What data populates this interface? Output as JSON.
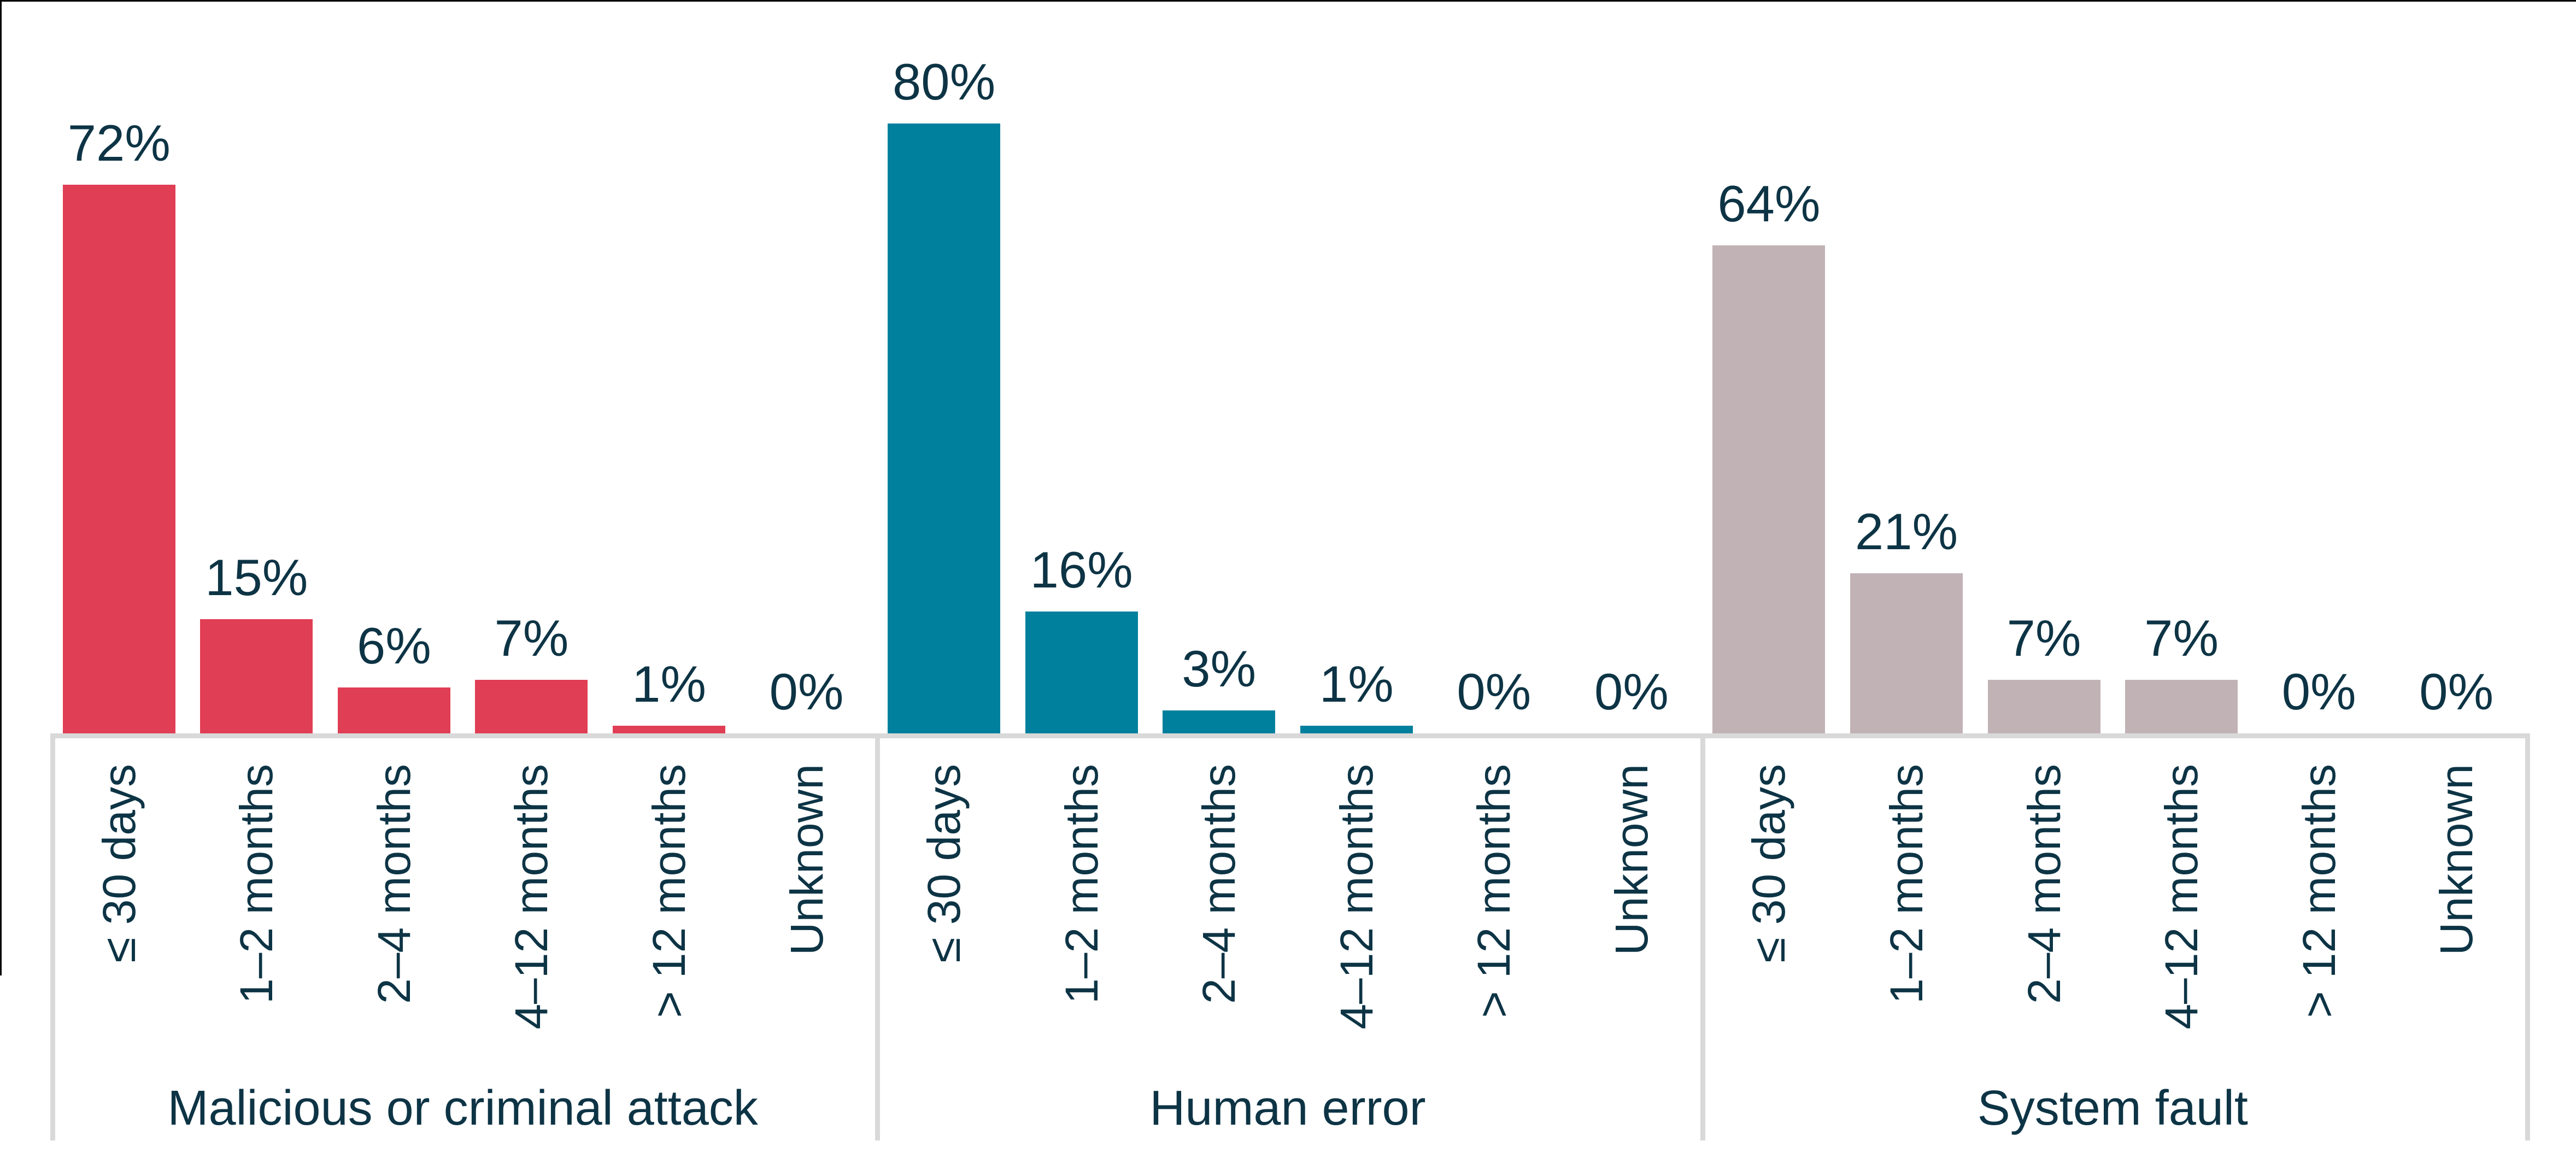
{
  "chart_data": {
    "type": "bar",
    "title": "",
    "categories": [
      "≤ 30 days",
      "1–2 months",
      "2–4 months",
      "4–12 months",
      "> 12 months",
      "Unknown"
    ],
    "value_suffix": "%",
    "ylim": [
      0,
      100
    ],
    "grid": false,
    "legend": "none",
    "value_labels": "above-bars",
    "category_label_rotation": -90,
    "series": [
      {
        "name": "Malicious or criminal attack",
        "color": "#e03e54",
        "values": [
          72,
          15,
          6,
          7,
          1,
          0
        ]
      },
      {
        "name": "Human error",
        "color": "#00809d",
        "values": [
          80,
          16,
          3,
          1,
          0,
          0
        ]
      },
      {
        "name": "System fault",
        "color": "#c1b2b6",
        "values": [
          64,
          21,
          7,
          7,
          0,
          0
        ]
      }
    ],
    "colors": {
      "text": "#0d3445",
      "axis_line": "#d9d9d9",
      "frame_border": "#000000"
    }
  }
}
